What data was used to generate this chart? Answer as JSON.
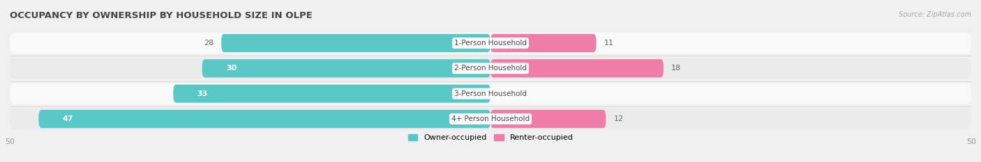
{
  "title": "OCCUPANCY BY OWNERSHIP BY HOUSEHOLD SIZE IN OLPE",
  "source": "Source: ZipAtlas.com",
  "categories": [
    "1-Person Household",
    "2-Person Household",
    "3-Person Household",
    "4+ Person Household"
  ],
  "owner_values": [
    28,
    30,
    33,
    47
  ],
  "renter_values": [
    11,
    18,
    0,
    12
  ],
  "owner_color": "#5bc8c8",
  "renter_color": "#f07ca8",
  "owner_color_light": "#7dd8d8",
  "renter_color_light": "#f5a0c0",
  "label_color_dark": "#666666",
  "label_color_white": "#ffffff",
  "axis_max": 50,
  "bar_height": 0.72,
  "bg_color": "#f0f0f0",
  "row_bg_light": "#f9f9f9",
  "row_bg_dark": "#ebebeb",
  "legend_owner": "Owner-occupied",
  "legend_renter": "Renter-occupied",
  "title_fontsize": 9.5,
  "tick_fontsize": 8,
  "label_fontsize": 8,
  "category_fontsize": 7.5
}
